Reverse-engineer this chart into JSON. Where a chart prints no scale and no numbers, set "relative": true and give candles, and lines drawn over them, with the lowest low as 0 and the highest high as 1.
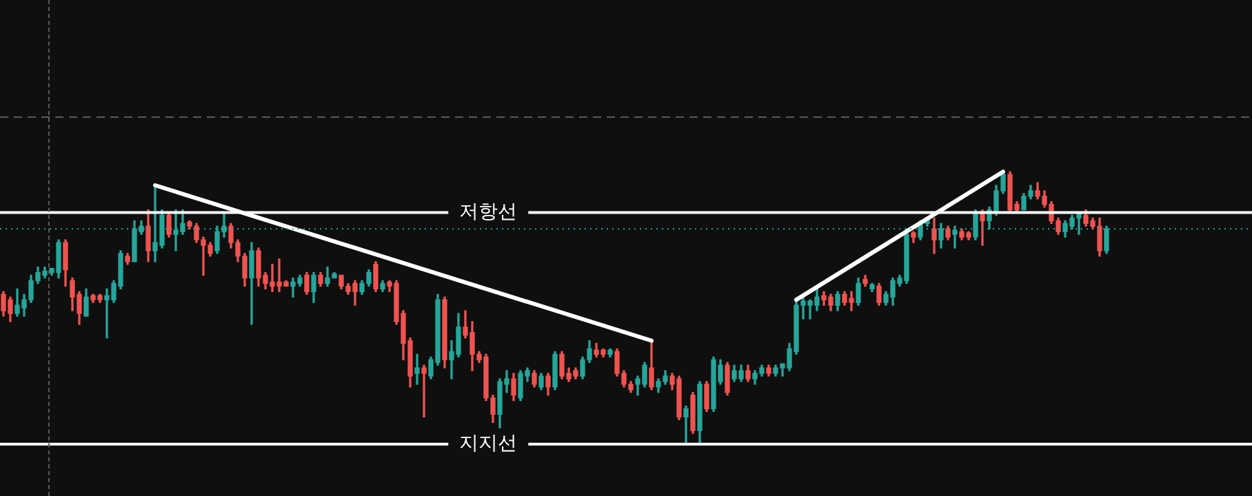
{
  "chart_data": {
    "type": "candlestick",
    "relative": true,
    "legend": false,
    "categories": [
      null,
      null,
      null,
      null,
      null,
      null,
      null,
      null,
      null,
      null,
      null,
      null,
      null,
      null,
      null,
      null,
      null,
      null,
      null,
      null,
      null,
      null,
      null,
      null,
      null,
      null,
      null,
      null,
      null,
      null,
      null,
      null,
      null,
      null,
      null,
      null,
      null,
      null,
      null,
      null,
      null,
      null,
      null,
      null,
      null,
      null,
      null,
      null,
      null,
      null,
      null,
      null,
      null,
      null,
      null,
      null,
      null,
      null,
      null,
      null,
      null,
      null,
      null,
      null,
      null,
      null,
      null,
      null,
      null,
      null,
      null,
      null,
      null,
      null,
      null,
      null,
      null,
      null,
      null,
      null,
      null,
      null,
      null,
      null,
      null,
      null,
      null,
      null,
      null,
      null,
      null,
      null,
      null,
      null,
      null,
      null,
      null,
      null,
      null,
      null,
      null,
      null,
      null,
      null,
      null,
      null,
      null,
      null,
      null,
      null,
      null,
      null,
      null,
      null,
      null,
      null,
      null,
      null,
      null,
      null,
      null,
      null,
      null,
      null,
      null,
      null,
      null,
      null,
      null,
      null,
      null,
      null,
      null,
      null,
      null,
      null,
      null,
      null,
      null,
      null,
      null,
      null,
      null,
      null,
      null,
      null,
      null,
      null,
      null,
      null,
      null,
      null,
      null,
      null,
      null,
      null,
      null,
      null,
      null,
      null,
      null
    ],
    "ohlc": [
      [
        0.55,
        0.56,
        0.47,
        0.49
      ],
      [
        0.53,
        0.54,
        0.45,
        0.48
      ],
      [
        0.48,
        0.57,
        0.47,
        0.51
      ],
      [
        0.5,
        0.55,
        0.47,
        0.53
      ],
      [
        0.53,
        0.62,
        0.52,
        0.6
      ],
      [
        0.6,
        0.65,
        0.59,
        0.63
      ],
      [
        0.62,
        0.65,
        0.61,
        0.63
      ],
      [
        0.63,
        0.64,
        0.62,
        0.64
      ],
      [
        0.63,
        0.75,
        0.61,
        0.74
      ],
      [
        0.74,
        0.75,
        0.58,
        0.64
      ],
      [
        0.6,
        0.61,
        0.49,
        0.54
      ],
      [
        0.55,
        0.56,
        0.44,
        0.48
      ],
      [
        0.47,
        0.57,
        0.47,
        0.54
      ],
      [
        0.54,
        0.55,
        0.52,
        0.53
      ],
      [
        0.54,
        0.55,
        0.52,
        0.53
      ],
      [
        0.53,
        0.57,
        0.39,
        0.54
      ],
      [
        0.53,
        0.6,
        0.52,
        0.59
      ],
      [
        0.58,
        0.71,
        0.57,
        0.7
      ],
      [
        0.69,
        0.7,
        0.66,
        0.67
      ],
      [
        0.67,
        0.82,
        0.67,
        0.79
      ],
      [
        0.78,
        0.82,
        0.77,
        0.8
      ],
      [
        0.8,
        0.86,
        0.67,
        0.71
      ],
      [
        0.71,
        0.95,
        0.67,
        0.74
      ],
      [
        0.73,
        0.86,
        0.72,
        0.84
      ],
      [
        0.84,
        0.85,
        0.76,
        0.77
      ],
      [
        0.77,
        0.86,
        0.71,
        0.78
      ],
      [
        0.78,
        0.86,
        0.77,
        0.81
      ],
      [
        0.81,
        0.82,
        0.79,
        0.8
      ],
      [
        0.8,
        0.81,
        0.74,
        0.75
      ],
      [
        0.75,
        0.76,
        0.62,
        0.73
      ],
      [
        0.73,
        0.74,
        0.69,
        0.7
      ],
      [
        0.71,
        0.8,
        0.7,
        0.78
      ],
      [
        0.78,
        0.85,
        0.76,
        0.8
      ],
      [
        0.8,
        0.81,
        0.72,
        0.74
      ],
      [
        0.74,
        0.75,
        0.67,
        0.69
      ],
      [
        0.69,
        0.7,
        0.58,
        0.61
      ],
      [
        0.61,
        0.74,
        0.44,
        0.71
      ],
      [
        0.71,
        0.72,
        0.58,
        0.61
      ],
      [
        0.62,
        0.63,
        0.57,
        0.59
      ],
      [
        0.59,
        0.66,
        0.56,
        0.58
      ],
      [
        0.59,
        0.68,
        0.56,
        0.58
      ],
      [
        0.59,
        0.6,
        0.58,
        0.58
      ],
      [
        0.58,
        0.61,
        0.54,
        0.59
      ],
      [
        0.59,
        0.62,
        0.58,
        0.61
      ],
      [
        0.62,
        0.63,
        0.55,
        0.56
      ],
      [
        0.56,
        0.63,
        0.52,
        0.62
      ],
      [
        0.62,
        0.63,
        0.58,
        0.59
      ],
      [
        0.59,
        0.65,
        0.58,
        0.61
      ],
      [
        0.61,
        0.63,
        0.61,
        0.62
      ],
      [
        0.62,
        0.62,
        0.57,
        0.58
      ],
      [
        0.58,
        0.59,
        0.55,
        0.56
      ],
      [
        0.59,
        0.6,
        0.51,
        0.56
      ],
      [
        0.56,
        0.6,
        0.55,
        0.59
      ],
      [
        0.59,
        0.64,
        0.58,
        0.63
      ],
      [
        0.66,
        0.67,
        0.56,
        0.57
      ],
      [
        0.57,
        0.6,
        0.56,
        0.59
      ],
      [
        0.59,
        0.6,
        0.56,
        0.58
      ],
      [
        0.59,
        0.6,
        0.44,
        0.45
      ],
      [
        0.48,
        0.49,
        0.31,
        0.37
      ],
      [
        0.38,
        0.39,
        0.21,
        0.25
      ],
      [
        0.26,
        0.33,
        0.22,
        0.28
      ],
      [
        0.28,
        0.29,
        0.1,
        0.26
      ],
      [
        0.25,
        0.32,
        0.24,
        0.31
      ],
      [
        0.3,
        0.55,
        0.29,
        0.53
      ],
      [
        0.53,
        0.54,
        0.28,
        0.31
      ],
      [
        0.31,
        0.38,
        0.24,
        0.34
      ],
      [
        0.33,
        0.48,
        0.32,
        0.43
      ],
      [
        0.43,
        0.49,
        0.39,
        0.4
      ],
      [
        0.41,
        0.45,
        0.27,
        0.33
      ],
      [
        0.33,
        0.34,
        0.3,
        0.31
      ],
      [
        0.32,
        0.33,
        0.16,
        0.17
      ],
      [
        0.17,
        0.18,
        0.08,
        0.11
      ],
      [
        0.11,
        0.24,
        0.06,
        0.23
      ],
      [
        0.22,
        0.27,
        0.19,
        0.24
      ],
      [
        0.24,
        0.26,
        0.16,
        0.18
      ],
      [
        0.17,
        0.27,
        0.16,
        0.26
      ],
      [
        0.25,
        0.28,
        0.23,
        0.27
      ],
      [
        0.26,
        0.27,
        0.21,
        0.22
      ],
      [
        0.21,
        0.26,
        0.2,
        0.25
      ],
      [
        0.25,
        0.26,
        0.18,
        0.21
      ],
      [
        0.21,
        0.34,
        0.2,
        0.33
      ],
      [
        0.33,
        0.34,
        0.24,
        0.25
      ],
      [
        0.26,
        0.28,
        0.23,
        0.24
      ],
      [
        0.27,
        0.28,
        0.24,
        0.25
      ],
      [
        0.25,
        0.32,
        0.24,
        0.31
      ],
      [
        0.31,
        0.38,
        0.3,
        0.35
      ],
      [
        0.34,
        0.37,
        0.32,
        0.33
      ],
      [
        0.34,
        0.35,
        0.32,
        0.33
      ],
      [
        0.33,
        0.35,
        0.32,
        0.34
      ],
      [
        0.34,
        0.35,
        0.25,
        0.26
      ],
      [
        0.26,
        0.27,
        0.21,
        0.22
      ],
      [
        0.22,
        0.23,
        0.19,
        0.2
      ],
      [
        0.22,
        0.25,
        0.18,
        0.24
      ],
      [
        0.22,
        0.3,
        0.21,
        0.29
      ],
      [
        0.28,
        0.38,
        0.2,
        0.21
      ],
      [
        0.21,
        0.24,
        0.19,
        0.23
      ],
      [
        0.23,
        0.27,
        0.22,
        0.25
      ],
      [
        0.25,
        0.26,
        0.2,
        0.22
      ],
      [
        0.24,
        0.25,
        0.09,
        0.1
      ],
      [
        0.1,
        0.14,
        0.0,
        0.13
      ],
      [
        0.18,
        0.19,
        0.04,
        0.05
      ],
      [
        0.05,
        0.23,
        0.0,
        0.22
      ],
      [
        0.22,
        0.23,
        0.12,
        0.13
      ],
      [
        0.13,
        0.32,
        0.12,
        0.31
      ],
      [
        0.23,
        0.31,
        0.22,
        0.29
      ],
      [
        0.29,
        0.3,
        0.18,
        0.19
      ],
      [
        0.24,
        0.29,
        0.23,
        0.27
      ],
      [
        0.24,
        0.29,
        0.23,
        0.27
      ],
      [
        0.27,
        0.29,
        0.23,
        0.24
      ],
      [
        0.24,
        0.27,
        0.22,
        0.26
      ],
      [
        0.26,
        0.29,
        0.25,
        0.28
      ],
      [
        0.28,
        0.29,
        0.25,
        0.26
      ],
      [
        0.26,
        0.29,
        0.25,
        0.28
      ],
      [
        0.28,
        0.29,
        0.25,
        0.29
      ],
      [
        0.28,
        0.37,
        0.27,
        0.35
      ],
      [
        0.34,
        0.53,
        0.33,
        0.51
      ],
      [
        0.51,
        0.54,
        0.46,
        0.52
      ],
      [
        0.51,
        0.53,
        0.46,
        0.52
      ],
      [
        0.51,
        0.57,
        0.49,
        0.54
      ],
      [
        0.54,
        0.56,
        0.51,
        0.53
      ],
      [
        0.54,
        0.55,
        0.49,
        0.51
      ],
      [
        0.51,
        0.56,
        0.49,
        0.55
      ],
      [
        0.55,
        0.56,
        0.51,
        0.52
      ],
      [
        0.53,
        0.56,
        0.49,
        0.52
      ],
      [
        0.52,
        0.61,
        0.51,
        0.59
      ],
      [
        0.6,
        0.62,
        0.58,
        0.59
      ],
      [
        0.57,
        0.59,
        0.56,
        0.58
      ],
      [
        0.58,
        0.59,
        0.51,
        0.52
      ],
      [
        0.52,
        0.56,
        0.51,
        0.55
      ],
      [
        0.54,
        0.61,
        0.51,
        0.6
      ],
      [
        0.59,
        0.62,
        0.58,
        0.61
      ],
      [
        0.6,
        0.79,
        0.59,
        0.77
      ],
      [
        0.77,
        0.78,
        0.74,
        0.76
      ],
      [
        0.76,
        0.82,
        0.75,
        0.81
      ],
      [
        0.81,
        0.82,
        0.8,
        0.82
      ],
      [
        0.79,
        0.83,
        0.7,
        0.75
      ],
      [
        0.75,
        0.81,
        0.72,
        0.79
      ],
      [
        0.79,
        0.8,
        0.75,
        0.76
      ],
      [
        0.77,
        0.8,
        0.72,
        0.78
      ],
      [
        0.78,
        0.79,
        0.75,
        0.76
      ],
      [
        0.77,
        0.78,
        0.75,
        0.76
      ],
      [
        0.76,
        0.86,
        0.75,
        0.85
      ],
      [
        0.85,
        0.86,
        0.73,
        0.82
      ],
      [
        0.82,
        0.87,
        0.79,
        0.86
      ],
      [
        0.85,
        0.95,
        0.84,
        0.93
      ],
      [
        0.93,
        1.0,
        0.92,
        0.99
      ],
      [
        0.99,
        1.0,
        0.85,
        0.86
      ],
      [
        0.88,
        0.89,
        0.85,
        0.86
      ],
      [
        0.86,
        0.92,
        0.86,
        0.91
      ],
      [
        0.91,
        0.95,
        0.9,
        0.93
      ],
      [
        0.93,
        0.96,
        0.9,
        0.91
      ],
      [
        0.91,
        0.93,
        0.87,
        0.88
      ],
      [
        0.88,
        0.89,
        0.81,
        0.82
      ],
      [
        0.82,
        0.83,
        0.77,
        0.78
      ],
      [
        0.78,
        0.82,
        0.76,
        0.81
      ],
      [
        0.8,
        0.84,
        0.79,
        0.83
      ],
      [
        0.83,
        0.84,
        0.77,
        0.84
      ],
      [
        0.84,
        0.86,
        0.8,
        0.81
      ],
      [
        0.82,
        0.83,
        0.79,
        0.8
      ],
      [
        0.8,
        0.83,
        0.69,
        0.71
      ],
      [
        0.71,
        0.8,
        0.7,
        0.79
      ]
    ],
    "series": [
      {
        "type": "line",
        "color": "#ffffff",
        "values": [
          null,
          null,
          null,
          null,
          null,
          null,
          null,
          null,
          null,
          null,
          null,
          null,
          null,
          null,
          null,
          null,
          null,
          null,
          null,
          null,
          null,
          null,
          0.95,
          null,
          null,
          null,
          null,
          null,
          null,
          null,
          null,
          null,
          null,
          null,
          null,
          null,
          null,
          null,
          null,
          null,
          null,
          null,
          null,
          null,
          null,
          null,
          null,
          null,
          null,
          null,
          null,
          null,
          null,
          null,
          null,
          null,
          null,
          null,
          null,
          null,
          null,
          null,
          null,
          null,
          null,
          null,
          null,
          null,
          null,
          null,
          null,
          null,
          null,
          null,
          null,
          null,
          null,
          null,
          null,
          null,
          null,
          null,
          null,
          null,
          null,
          null,
          null,
          null,
          null,
          null,
          null,
          null,
          null,
          null,
          0.38,
          null,
          null,
          null,
          null,
          null,
          null,
          null,
          null,
          null,
          null,
          null,
          null,
          null,
          null,
          null,
          null,
          null,
          null,
          null,
          null,
          null,
          null,
          null,
          null,
          null,
          null,
          null,
          null,
          null,
          null,
          null,
          null,
          null,
          null,
          null,
          null,
          null,
          null,
          null,
          null,
          null,
          null,
          null,
          null,
          null,
          null,
          null,
          null,
          null,
          null,
          null,
          null,
          null,
          null,
          null,
          null,
          null,
          null,
          null,
          null,
          null,
          null,
          null,
          null,
          null,
          null
        ]
      },
      {
        "type": "line",
        "color": "#ffffff",
        "values": [
          null,
          null,
          null,
          null,
          null,
          null,
          null,
          null,
          null,
          null,
          null,
          null,
          null,
          null,
          null,
          null,
          null,
          null,
          null,
          null,
          null,
          null,
          null,
          null,
          null,
          null,
          null,
          null,
          null,
          null,
          null,
          null,
          null,
          null,
          null,
          null,
          null,
          null,
          null,
          null,
          null,
          null,
          null,
          null,
          null,
          null,
          null,
          null,
          null,
          null,
          null,
          null,
          null,
          null,
          null,
          null,
          null,
          null,
          null,
          null,
          null,
          null,
          null,
          null,
          null,
          null,
          null,
          null,
          null,
          null,
          null,
          null,
          null,
          null,
          null,
          null,
          null,
          null,
          null,
          null,
          null,
          null,
          null,
          null,
          null,
          null,
          null,
          null,
          null,
          null,
          null,
          null,
          null,
          null,
          null,
          null,
          null,
          null,
          null,
          null,
          null,
          null,
          null,
          null,
          null,
          null,
          null,
          null,
          null,
          null,
          null,
          null,
          null,
          null,
          null,
          0.53,
          null,
          null,
          null,
          null,
          null,
          null,
          null,
          null,
          null,
          null,
          null,
          null,
          null,
          null,
          null,
          null,
          null,
          null,
          null,
          null,
          null,
          null,
          null,
          null,
          null,
          null,
          null,
          null,
          null,
          1.0,
          null,
          null,
          null,
          null,
          null,
          null,
          null,
          null,
          null,
          null,
          null,
          null,
          null,
          null,
          null
        ]
      }
    ],
    "ref_lines": [
      {
        "axis": "y",
        "value": 1.2,
        "color": "#5a5a5a",
        "line_style": "dashed"
      },
      {
        "axis": "y",
        "value": 0.85,
        "label": "저항선",
        "color": "#ffffff"
      },
      {
        "axis": "y",
        "value": 0.79,
        "color": "#26a69a",
        "line_style": "dotted"
      },
      {
        "axis": "y",
        "value": 0,
        "label": "지지선",
        "color": "#ffffff"
      }
    ]
  }
}
